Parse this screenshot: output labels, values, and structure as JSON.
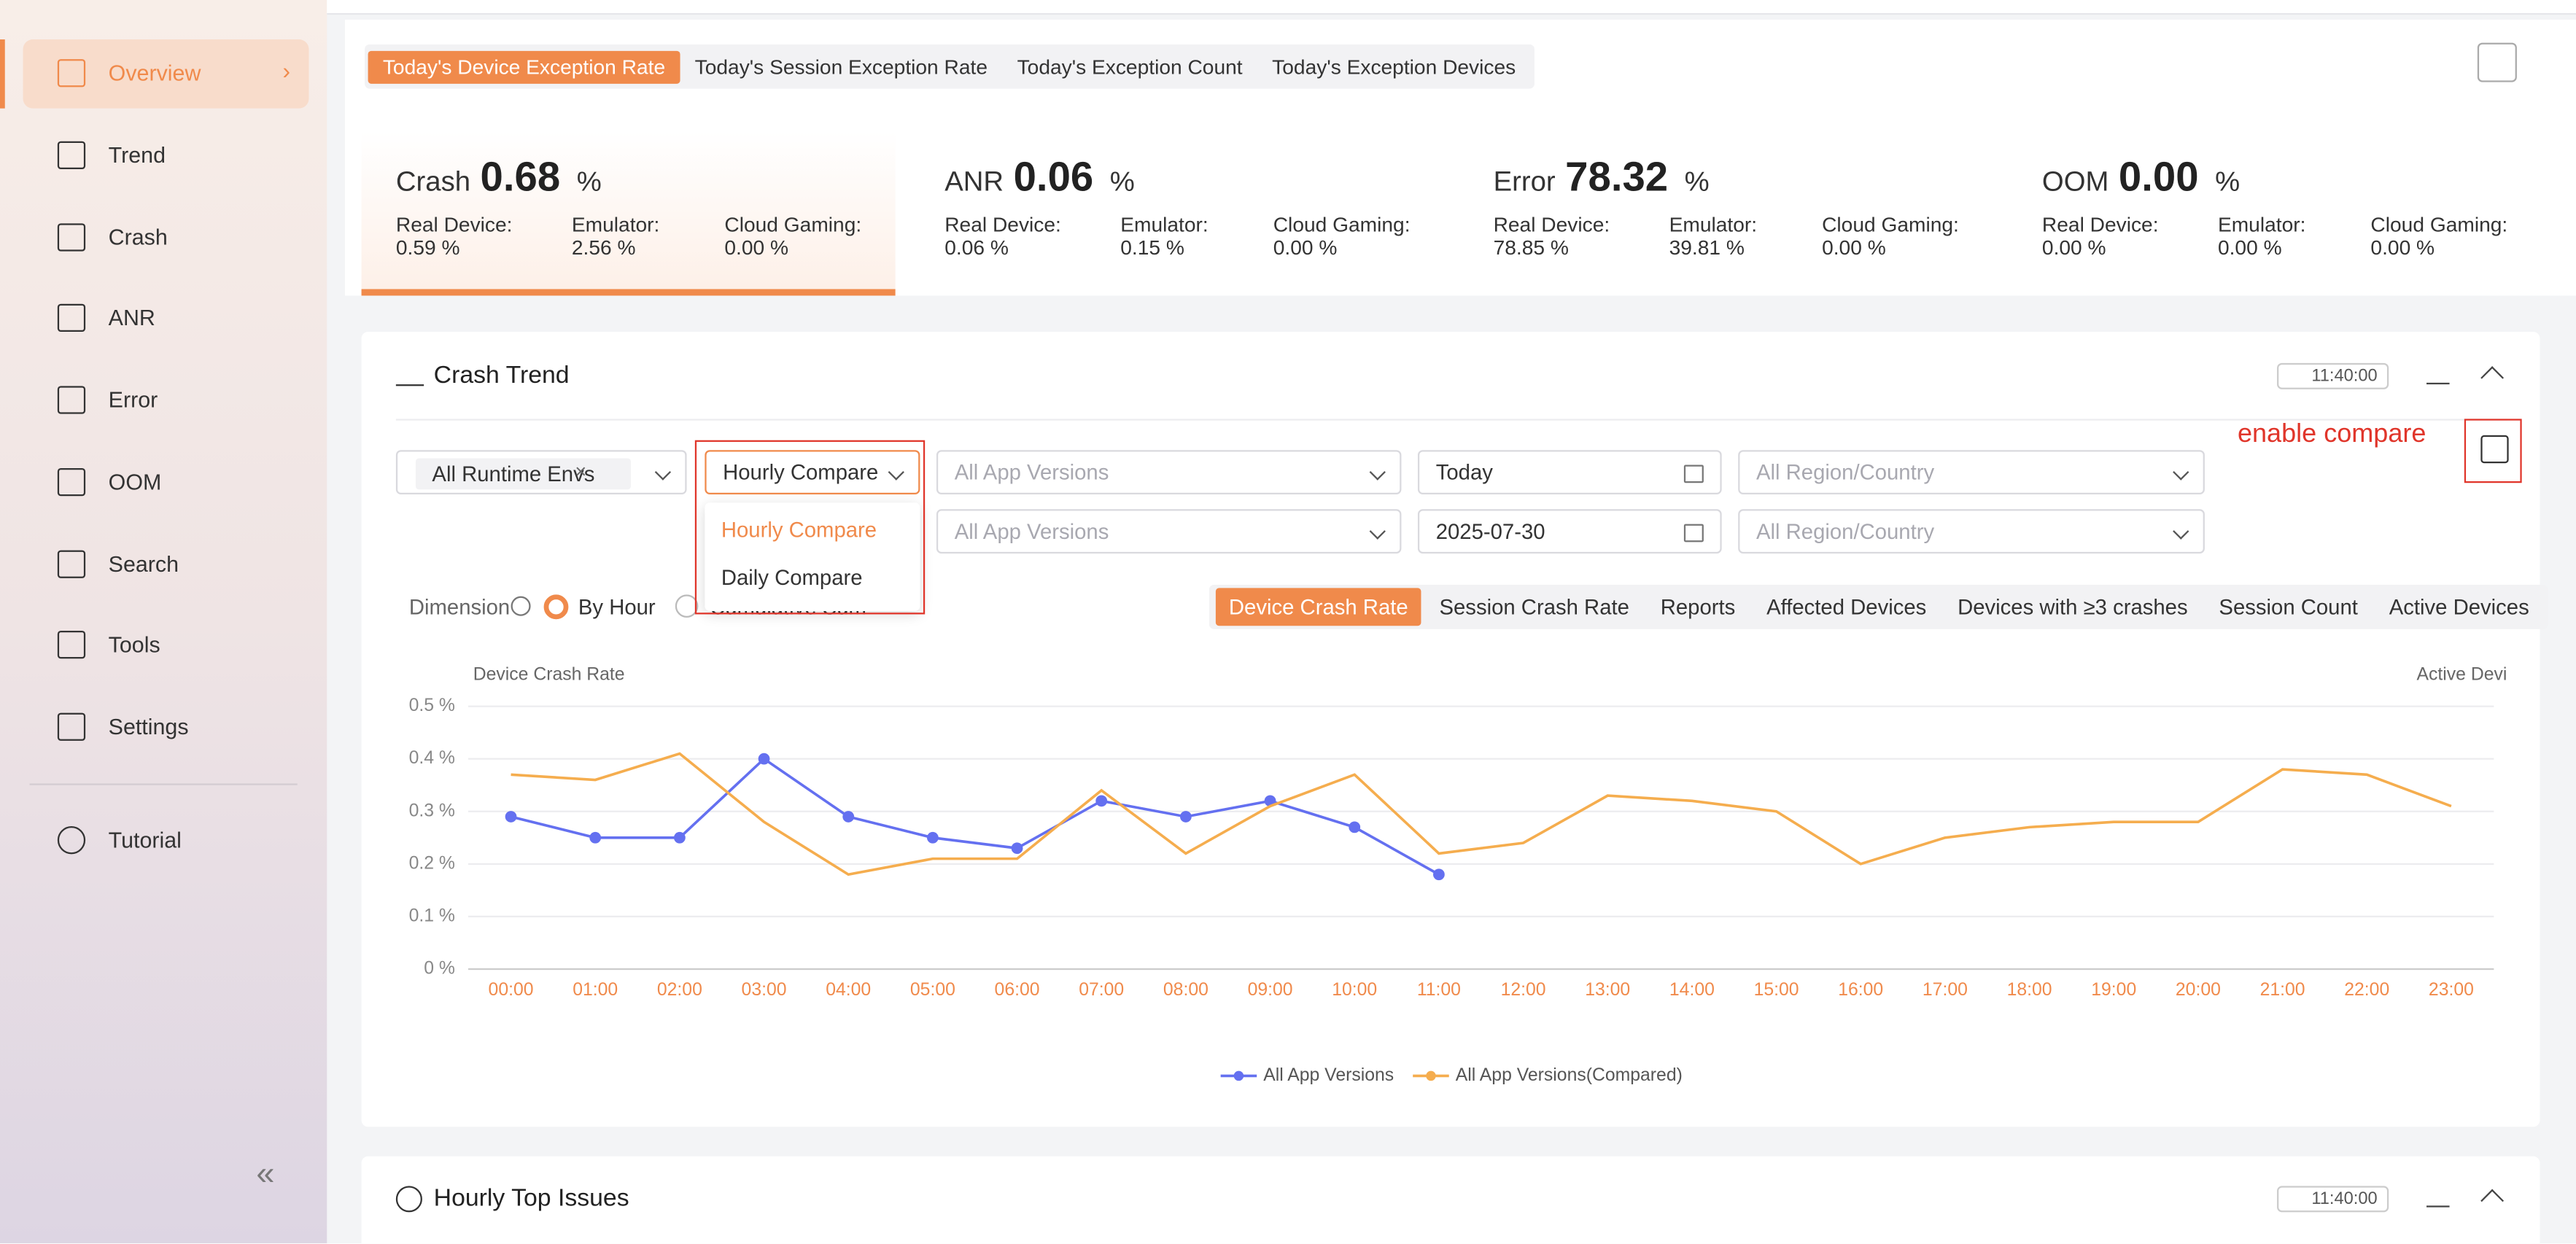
{
  "sidebar": {
    "items": [
      "Overview",
      "Trend",
      "Crash",
      "ANR",
      "Error",
      "OOM",
      "Search",
      "Tools",
      "Settings"
    ],
    "tutorial": "Tutorial"
  },
  "tabs": [
    "Today's Device Exception Rate",
    "Today's Session Exception Rate",
    "Today's Exception Count",
    "Today's Exception Devices"
  ],
  "cards": [
    {
      "name": "Crash",
      "value": "0.68",
      "unit": "%",
      "subs": [
        {
          "label": "Real Device:",
          "value": "0.59 %"
        },
        {
          "label": "Emulator:",
          "value": "2.56 %"
        },
        {
          "label": "Cloud Gaming:",
          "value": "0.00 %"
        }
      ]
    },
    {
      "name": "ANR",
      "value": "0.06",
      "unit": "%",
      "subs": [
        {
          "label": "Real Device:",
          "value": "0.06 %"
        },
        {
          "label": "Emulator:",
          "value": "0.15 %"
        },
        {
          "label": "Cloud Gaming:",
          "value": "0.00 %"
        }
      ]
    },
    {
      "name": "Error",
      "value": "78.32",
      "unit": "%",
      "subs": [
        {
          "label": "Real Device:",
          "value": "78.85 %"
        },
        {
          "label": "Emulator:",
          "value": "39.81 %"
        },
        {
          "label": "Cloud Gaming:",
          "value": "0.00 %"
        }
      ]
    },
    {
      "name": "OOM",
      "value": "0.00",
      "unit": "%",
      "subs": [
        {
          "label": "Real Device:",
          "value": "0.00 %"
        },
        {
          "label": "Emulator:",
          "value": "0.00 %"
        },
        {
          "label": "Cloud Gaming:",
          "value": "0.00 %"
        }
      ]
    }
  ],
  "crash_trend": {
    "title": "Crash Trend",
    "time": "11:40:00",
    "enable_compare": "enable compare",
    "runtime_tag": "All Runtime Envs",
    "compare_select": "Hourly Compare",
    "row1": {
      "versions": "All App Versions",
      "date": "Today",
      "region": "All Region/Country"
    },
    "row2": {
      "versions": "All App Versions",
      "date": "2025-07-30",
      "region": "All Region/Country"
    },
    "dropdown": [
      "Hourly Compare",
      "Daily Compare"
    ],
    "dimension": {
      "label": "Dimension",
      "options": [
        "By Hour",
        "Cumulative Sum"
      ]
    },
    "metrics": [
      "Device Crash Rate",
      "Session Crash Rate",
      "Reports",
      "Affected Devices",
      "Devices with ≥3 crashes",
      "Session Count",
      "Active Devices"
    ],
    "chart": {
      "type": "line",
      "y_label": "Device Crash Rate",
      "y2_label": "Active Devi",
      "categories": [
        "00:00",
        "01:00",
        "02:00",
        "03:00",
        "04:00",
        "05:00",
        "06:00",
        "07:00",
        "08:00",
        "09:00",
        "10:00",
        "11:00",
        "12:00",
        "13:00",
        "14:00",
        "15:00",
        "16:00",
        "17:00",
        "18:00",
        "19:00",
        "20:00",
        "21:00",
        "22:00",
        "23:00"
      ],
      "ylim": [
        0,
        0.5
      ],
      "yticks": [
        {
          "value": 0,
          "label": "0 %"
        },
        {
          "value": 0.1,
          "label": "0.1 %"
        },
        {
          "value": 0.2,
          "label": "0.2 %"
        },
        {
          "value": 0.3,
          "label": "0.3 %"
        },
        {
          "value": 0.4,
          "label": "0.4 %"
        },
        {
          "value": 0.5,
          "label": "0.5 %"
        }
      ],
      "grid": true,
      "series": [
        {
          "name": "All App Versions",
          "color": "#6470f0",
          "markers": true,
          "values": [
            0.29,
            0.25,
            0.25,
            0.4,
            0.29,
            0.25,
            0.23,
            0.32,
            0.29,
            0.32,
            0.27,
            0.18,
            null,
            null,
            null,
            null,
            null,
            null,
            null,
            null,
            null,
            null,
            null,
            null
          ]
        },
        {
          "name": "All App Versions(Compared)",
          "color": "#f5ad4e",
          "markers": false,
          "values": [
            0.37,
            0.36,
            0.41,
            0.28,
            0.18,
            0.21,
            0.21,
            0.34,
            0.22,
            0.31,
            0.37,
            0.22,
            0.24,
            0.33,
            0.32,
            0.3,
            0.2,
            0.25,
            0.27,
            0.28,
            0.28,
            0.38,
            0.37,
            0.31
          ]
        }
      ]
    }
  },
  "top_issues": {
    "title": "Hourly Top Issues",
    "time": "11:40:00"
  }
}
